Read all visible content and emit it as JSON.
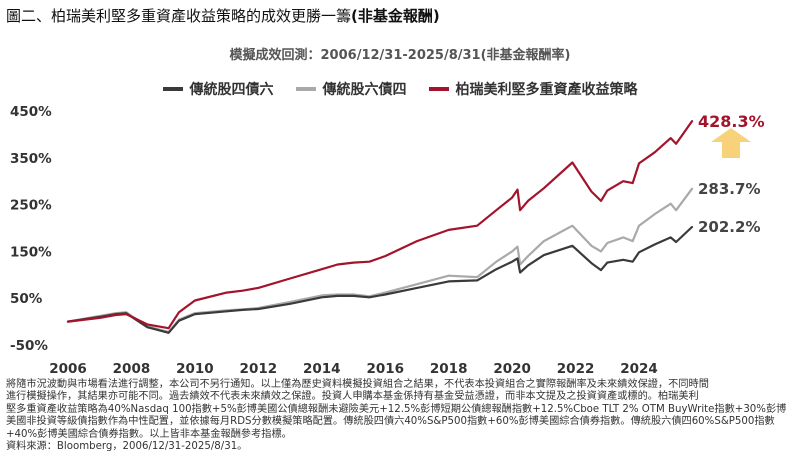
{
  "figure": {
    "title_prefix": "圖二、柏瑞美利堅多重資產收益策略的成效更勝一籌",
    "title_suffix": "(非基金報酬)"
  },
  "subtitle": "模擬成效回測：2006/12/31-2025/8/31(非基金報酬率)",
  "colors": {
    "s1": "#3a3a3a",
    "s2": "#a9a9a9",
    "s3": "#a3142c",
    "arrow": "#f7d27a"
  },
  "chart_data": {
    "type": "line",
    "title": "模擬成效回測：2006/12/31-2025/8/31(非基金報酬率)",
    "xlabel": "",
    "ylabel": "",
    "xlim": [
      2006,
      2025.67
    ],
    "ylim": [
      -50,
      450
    ],
    "xticks": [
      "2006",
      "2008",
      "2010",
      "2012",
      "2014",
      "2016",
      "2018",
      "2020",
      "2022",
      "2024"
    ],
    "yticks": [
      "450%",
      "350%",
      "250%",
      "150%",
      "50%",
      "-50%"
    ],
    "legend_position": "top",
    "grid": false,
    "series": [
      {
        "name": "傳統股四債六",
        "end_label": "202.2%",
        "x": [
          2006.0,
          2007.0,
          2007.5,
          2007.83,
          2008.5,
          2009.17,
          2009.5,
          2010.0,
          2011.0,
          2011.5,
          2012.0,
          2013.0,
          2014.0,
          2014.5,
          2015.0,
          2015.5,
          2016.0,
          2017.0,
          2018.0,
          2018.9,
          2019.5,
          2020.0,
          2020.17,
          2020.25,
          2020.5,
          2021.0,
          2021.9,
          2022.5,
          2022.8,
          2023.0,
          2023.5,
          2023.8,
          2024.0,
          2024.5,
          2025.0,
          2025.17,
          2025.67
        ],
        "y": [
          0,
          10,
          16,
          18,
          -12,
          -24,
          2,
          16,
          22,
          25,
          27,
          38,
          52,
          55,
          55,
          52,
          58,
          72,
          86,
          88,
          112,
          128,
          135,
          105,
          120,
          142,
          162,
          125,
          110,
          126,
          132,
          128,
          148,
          165,
          180,
          170,
          202.2
        ]
      },
      {
        "name": "傳統股六債四",
        "end_label": "283.7%",
        "x": [
          2006.0,
          2007.0,
          2007.5,
          2007.83,
          2008.5,
          2009.17,
          2009.5,
          2010.0,
          2011.0,
          2011.5,
          2012.0,
          2013.0,
          2014.0,
          2014.5,
          2015.0,
          2015.5,
          2016.0,
          2017.0,
          2018.0,
          2018.9,
          2019.5,
          2020.0,
          2020.17,
          2020.25,
          2020.5,
          2021.0,
          2021.9,
          2022.5,
          2022.8,
          2023.0,
          2023.5,
          2023.8,
          2024.0,
          2024.5,
          2025.0,
          2025.17,
          2025.67
        ],
        "y": [
          0,
          12,
          18,
          20,
          -10,
          -22,
          4,
          18,
          24,
          26,
          29,
          42,
          56,
          58,
          58,
          54,
          62,
          80,
          98,
          95,
          128,
          150,
          160,
          122,
          140,
          172,
          205,
          162,
          150,
          168,
          180,
          172,
          205,
          230,
          252,
          238,
          283.7
        ]
      },
      {
        "name": "柏瑞美利堅多重資產收益策略",
        "end_label": "428.3%",
        "x": [
          2006.0,
          2007.0,
          2007.5,
          2007.83,
          2008.5,
          2009.17,
          2009.5,
          2010.0,
          2011.0,
          2011.5,
          2012.0,
          2013.0,
          2014.0,
          2014.5,
          2015.0,
          2015.5,
          2016.0,
          2017.0,
          2018.0,
          2018.9,
          2019.5,
          2020.0,
          2020.17,
          2020.25,
          2020.5,
          2021.0,
          2021.9,
          2022.5,
          2022.8,
          2023.0,
          2023.5,
          2023.8,
          2024.0,
          2024.5,
          2025.0,
          2025.17,
          2025.67
        ],
        "y": [
          0,
          8,
          14,
          16,
          -6,
          -14,
          20,
          45,
          62,
          66,
          72,
          92,
          112,
          122,
          126,
          128,
          140,
          172,
          196,
          205,
          238,
          265,
          282,
          238,
          258,
          285,
          340,
          278,
          258,
          280,
          300,
          296,
          338,
          362,
          392,
          380,
          428.3
        ]
      }
    ]
  },
  "notes": {
    "line1": "將隨市況波動與市場看法進行調整，本公司不另行通知。以上僅為歷史資料模擬投資組合之結果，不代表本投資組合之實際報酬率及未來績效保證，不同時間",
    "line2": "進行模擬操作，其結果亦可能不同。過去績效不代表未來績效之保證。投資人申購本基金係持有基金受益憑證，而非本文提及之投資資產或標的。柏瑞美利",
    "line3": "堅多重資產收益策略為40%Nasdaq 100指數+5%彭博美國公債總報酬未避險美元+12.5%彭博短期公債總報酬指數+12.5%Cboe TLT 2% OTM BuyWrite指數+30%彭博美國非投資等級債指數作為中性配置，並依據每月RDS分數模擬策略配置。傳統股四債六40%S&P500指數+60%彭博美國綜合債券指數。傳統股六債四60%S&P500指數+40%彭博美國綜合債券指數。以上皆非本基金報酬參考指標。",
    "source": "資料來源：Bloomberg，2006/12/31-2025/8/31。"
  }
}
